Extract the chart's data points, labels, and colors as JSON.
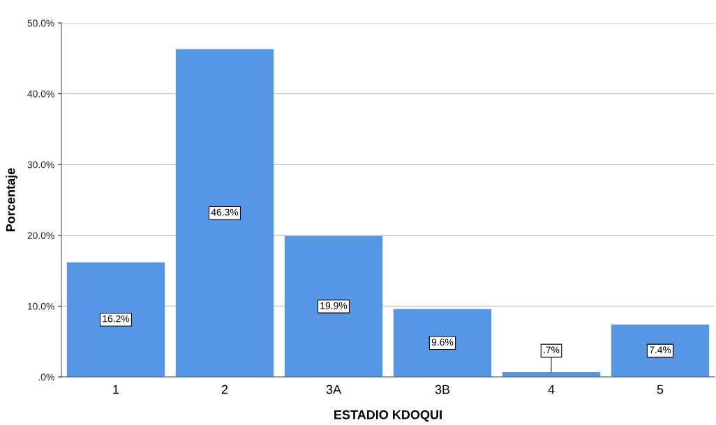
{
  "chart_data": {
    "type": "bar",
    "xlabel": "ESTADIO KDOQUI",
    "ylabel": "Porcentaje",
    "categories": [
      "1",
      "2",
      "3A",
      "3B",
      "4",
      "5"
    ],
    "values": [
      16.2,
      46.3,
      19.9,
      9.6,
      0.7,
      7.4
    ],
    "value_labels": [
      "16.2%",
      "46.3%",
      "19.9%",
      "9.6%",
      ".7%",
      "7.4%"
    ],
    "color": "#5596e5",
    "ylim": [
      0,
      50
    ],
    "yticks": [
      {
        "value": 0,
        "label": ".0%"
      },
      {
        "value": 10,
        "label": "10.0%"
      },
      {
        "value": 20,
        "label": "20.0%"
      },
      {
        "value": 30,
        "label": "30.0%"
      },
      {
        "value": 40,
        "label": "40.0%"
      },
      {
        "value": 50,
        "label": "50.0%"
      }
    ],
    "grid": "y"
  }
}
